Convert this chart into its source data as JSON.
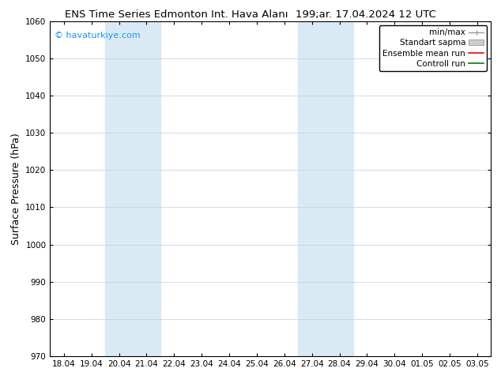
{
  "title_left": "ENS Time Series Edmonton Int. Hava Alanı",
  "title_right": "199;ar. 17.04.2024 12 UTC",
  "ylabel": "Surface Pressure (hPa)",
  "ylim": [
    970,
    1060
  ],
  "yticks": [
    970,
    980,
    990,
    1000,
    1010,
    1020,
    1030,
    1040,
    1050,
    1060
  ],
  "x_tick_labels": [
    "18.04",
    "19.04",
    "20.04",
    "21.04",
    "22.04",
    "23.04",
    "24.04",
    "25.04",
    "26.04",
    "27.04",
    "28.04",
    "29.04",
    "30.04",
    "01.05",
    "02.05",
    "03.05"
  ],
  "watermark": "© havaturkiye.com",
  "watermark_color": "#1E90FF",
  "background_color": "#ffffff",
  "shaded_regions": [
    {
      "x_start": "20.04",
      "x_end": "22.04",
      "color": "#daeaf5"
    },
    {
      "x_start": "27.04",
      "x_end": "29.04",
      "color": "#daeaf5"
    }
  ],
  "legend_entries": [
    {
      "label": "min/max",
      "color": "#999999",
      "type": "errorbar"
    },
    {
      "label": "Standart sapma",
      "color": "#cccccc",
      "type": "bar"
    },
    {
      "label": "Ensemble mean run",
      "color": "#ff0000",
      "type": "line"
    },
    {
      "label": "Controll run",
      "color": "#008000",
      "type": "line"
    }
  ],
  "title_fontsize": 9.5,
  "tick_fontsize": 7.5,
  "ylabel_fontsize": 9,
  "legend_fontsize": 7.5
}
